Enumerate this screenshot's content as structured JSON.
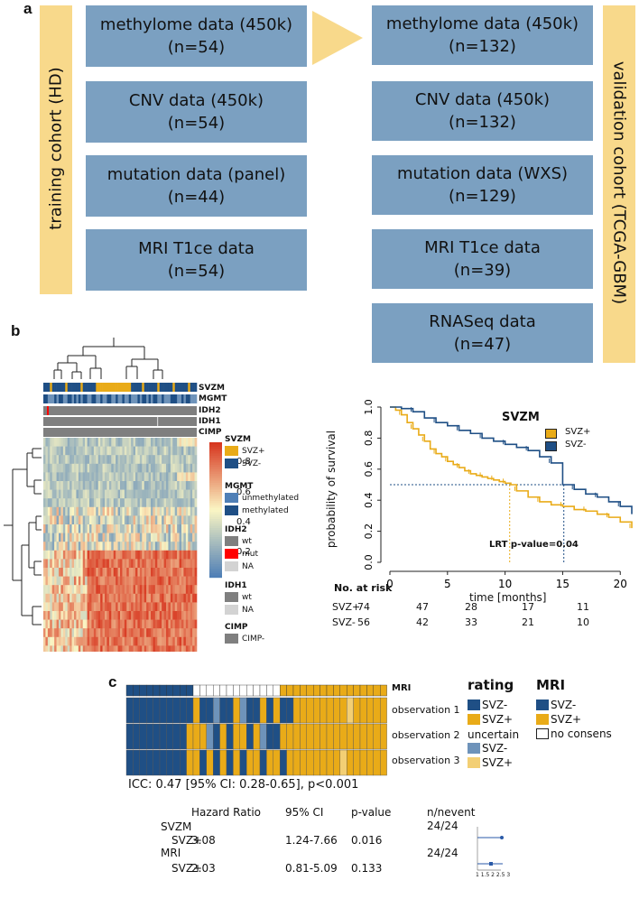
{
  "panel_a": {
    "letter": "a",
    "training_label": "training cohort  (HD)",
    "validation_label": "validation cohort (TCGA-GBM)",
    "training": [
      {
        "name": "methylome data (450k)",
        "n": "(n=54)"
      },
      {
        "name": "CNV data (450k)",
        "n": "(n=54)"
      },
      {
        "name": "mutation data (panel)",
        "n": "(n=44)"
      },
      {
        "name": "MRI T1ce data",
        "n": "(n=54)"
      }
    ],
    "validation": [
      {
        "name": "methylome data (450k)",
        "n": "(n=132)"
      },
      {
        "name": "CNV data (450k)",
        "n": "(n=132)"
      },
      {
        "name": "mutation data (WXS)",
        "n": "(n=129)"
      },
      {
        "name": "MRI T1ce data",
        "n": "(n=39)"
      },
      {
        "name": "RNASeq data",
        "n": "(n=47)"
      }
    ],
    "colors": {
      "box": "#7ba0c1",
      "bar": "#f8d98b"
    }
  },
  "panel_b": {
    "letter": "b",
    "annotations": [
      "SVZM",
      "MGMT",
      "IDH2",
      "IDH1",
      "CIMP"
    ],
    "colorbar_ticks": [
      "0.8",
      "0.6",
      "0.4",
      "0.2"
    ],
    "legend": {
      "svzm_title": "SVZM",
      "svzm_items": [
        "SVZ+",
        "SVZ-"
      ],
      "mgmt_title": "MGMT",
      "mgmt_items": [
        "unmethylated",
        "methylated"
      ],
      "idh2_title": "IDH2",
      "idh2_items": [
        "wt",
        "mut",
        "NA"
      ],
      "idh1_title": "IDH1",
      "idh1_items": [
        "wt",
        "NA"
      ],
      "cimp_title": "CIMP",
      "cimp_items": [
        "CIMP-"
      ]
    },
    "colors": {
      "svz_plus": "#e9ab18",
      "svz_minus": "#1f4f85",
      "low": "#4f7fb6",
      "mid": "#fbf6c4",
      "high": "#d7361f"
    }
  },
  "panel_c": {
    "letter": "c",
    "row_labels": [
      "MRI",
      "observation 1",
      "observation 2",
      "observation 3"
    ],
    "icc_text": "ICC: 0.47 [95% CI: 0.28-0.65], p<0.001",
    "rating_title": "rating",
    "rating_items": [
      "SVZ-",
      "SVZ+"
    ],
    "uncertain_label": "uncertain",
    "uncertain_items": [
      "SVZ-",
      "SVZ+"
    ],
    "mri_title": "MRI",
    "mri_items": [
      "SVZ-",
      "SVZ+",
      "no consens"
    ],
    "table_headers": [
      "Hazard Ratio",
      "95% CI",
      "p-value",
      "n/nevent"
    ],
    "table_rows": [
      {
        "group": "SVZM",
        "sub": "SVZ+",
        "hr": "3.08",
        "ci": "1.24-7.66",
        "p": "0.016",
        "n": "24/24"
      },
      {
        "group": "MRI",
        "sub": "SVZ+",
        "hr": "2.03",
        "ci": "0.81-5.09",
        "p": "0.133",
        "n": "24/24"
      }
    ],
    "forest_ticks": "1 1.5 2 2.5 3",
    "colors": {
      "minus": "#1f4f85",
      "plus": "#e9ab18",
      "unc_minus": "#6e93ba",
      "unc_plus": "#f3cf74"
    }
  },
  "chart_data": {
    "type": "line",
    "title": "SVZM",
    "xlabel": "time [months]",
    "ylabel": "probability of survival",
    "xlim": [
      0,
      21
    ],
    "ylim": [
      0,
      1.0
    ],
    "x_ticks": [
      "0",
      "5",
      "10",
      "15",
      "20"
    ],
    "y_ticks": [
      "0.0",
      "0.2",
      "0.4",
      "0.6",
      "0.8",
      "1.0"
    ],
    "series": [
      {
        "name": "SVZ+",
        "color": "#e9ab18",
        "x": [
          0,
          0.5,
          1,
          1.5,
          2,
          2.5,
          3,
          3.5,
          4,
          4.5,
          5,
          5.5,
          6,
          6.5,
          7,
          7.5,
          8,
          8.5,
          9,
          9.5,
          10,
          10.5,
          11,
          12,
          13,
          14,
          15,
          16,
          17,
          18,
          19,
          20,
          21
        ],
        "y": [
          1.0,
          0.98,
          0.95,
          0.9,
          0.86,
          0.82,
          0.78,
          0.73,
          0.7,
          0.68,
          0.65,
          0.63,
          0.61,
          0.59,
          0.57,
          0.56,
          0.55,
          0.54,
          0.53,
          0.52,
          0.51,
          0.5,
          0.46,
          0.42,
          0.39,
          0.37,
          0.36,
          0.34,
          0.33,
          0.31,
          0.29,
          0.26,
          0.22
        ]
      },
      {
        "name": "SVZ-",
        "color": "#1f4f85",
        "x": [
          0,
          1,
          2,
          3,
          4,
          5,
          6,
          7,
          8,
          9,
          10,
          11,
          12,
          13,
          14,
          15,
          16,
          17,
          18,
          19,
          20,
          21
        ],
        "y": [
          1.0,
          0.99,
          0.97,
          0.93,
          0.9,
          0.88,
          0.85,
          0.83,
          0.8,
          0.78,
          0.76,
          0.74,
          0.72,
          0.68,
          0.64,
          0.5,
          0.47,
          0.44,
          0.42,
          0.39,
          0.36,
          0.31
        ]
      }
    ],
    "median_line_y": 0.5,
    "median_x": {
      "SVZ+": 10.4,
      "SVZ-": 15.1
    },
    "annotation": "LRT p-value=0.04",
    "risk_table": {
      "title": "No. at risk",
      "rows": [
        {
          "label": "SVZ+",
          "values": [
            "74",
            "47",
            "28",
            "17",
            "11"
          ]
        },
        {
          "label": "SVZ-",
          "values": [
            "56",
            "42",
            "33",
            "21",
            "10"
          ]
        }
      ]
    }
  }
}
